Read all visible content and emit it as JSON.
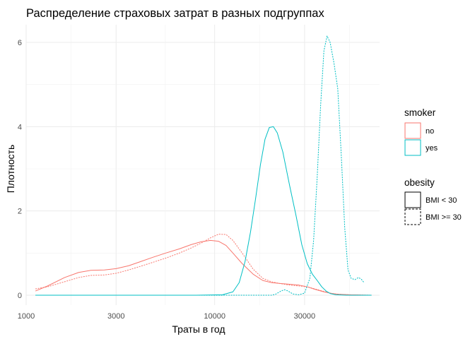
{
  "chart_data": {
    "type": "line",
    "title": "Распределение страховых затрат в разных подгруппах",
    "xlabel": "Траты в год",
    "ylabel": "Плотность",
    "x_scale": "log10",
    "xlim": [
      1000,
      75000
    ],
    "ylim": [
      0,
      6.3
    ],
    "x_ticks": [
      1000,
      3000,
      10000,
      30000
    ],
    "x_tick_labels": [
      "1000",
      "3000",
      "10000",
      "30000"
    ],
    "y_ticks": [
      0,
      2,
      4,
      6
    ],
    "y_tick_labels": [
      "0",
      "2",
      "4",
      "6"
    ],
    "grid": true,
    "legends": [
      {
        "title": "smoker",
        "entries": [
          {
            "label": "no",
            "color": "#F8766D"
          },
          {
            "label": "yes",
            "color": "#00BFC4"
          }
        ]
      },
      {
        "title": "obesity",
        "entries": [
          {
            "label": "BMI < 30",
            "linetype": "solid"
          },
          {
            "label": "BMI >= 30",
            "linetype": "dashed"
          }
        ]
      }
    ],
    "legend_position": "right",
    "series": [
      {
        "smoker": "no",
        "obesity": "BMI < 30",
        "color": "#F8766D",
        "linetype": "solid",
        "points": [
          [
            1120,
            0.1
          ],
          [
            1300,
            0.22
          ],
          [
            1600,
            0.42
          ],
          [
            1900,
            0.54
          ],
          [
            2200,
            0.59
          ],
          [
            2600,
            0.6
          ],
          [
            3000,
            0.63
          ],
          [
            3500,
            0.7
          ],
          [
            4000,
            0.79
          ],
          [
            4700,
            0.9
          ],
          [
            5500,
            1.0
          ],
          [
            6500,
            1.1
          ],
          [
            7500,
            1.2
          ],
          [
            8500,
            1.27
          ],
          [
            9500,
            1.3
          ],
          [
            10500,
            1.28
          ],
          [
            11500,
            1.18
          ],
          [
            12500,
            1.0
          ],
          [
            14000,
            0.75
          ],
          [
            16000,
            0.5
          ],
          [
            18000,
            0.35
          ],
          [
            20000,
            0.3
          ],
          [
            22000,
            0.28
          ],
          [
            25000,
            0.26
          ],
          [
            28000,
            0.24
          ],
          [
            31000,
            0.2
          ],
          [
            34000,
            0.14
          ],
          [
            38000,
            0.08
          ],
          [
            42000,
            0.04
          ],
          [
            46000,
            0.02
          ],
          [
            52000,
            0.01
          ],
          [
            60000,
            0.005
          ],
          [
            68000,
            0
          ]
        ]
      },
      {
        "smoker": "no",
        "obesity": "BMI >= 30",
        "color": "#F8766D",
        "linetype": "dashed",
        "points": [
          [
            1120,
            0.15
          ],
          [
            1300,
            0.2
          ],
          [
            1600,
            0.32
          ],
          [
            1900,
            0.42
          ],
          [
            2200,
            0.47
          ],
          [
            2600,
            0.48
          ],
          [
            3000,
            0.52
          ],
          [
            3500,
            0.6
          ],
          [
            4000,
            0.68
          ],
          [
            4700,
            0.78
          ],
          [
            5500,
            0.88
          ],
          [
            6500,
            1.0
          ],
          [
            7500,
            1.12
          ],
          [
            8500,
            1.24
          ],
          [
            9500,
            1.36
          ],
          [
            10500,
            1.45
          ],
          [
            11500,
            1.44
          ],
          [
            12500,
            1.3
          ],
          [
            14000,
            1.0
          ],
          [
            16000,
            0.62
          ],
          [
            18000,
            0.4
          ],
          [
            20000,
            0.32
          ],
          [
            22000,
            0.28
          ],
          [
            25000,
            0.24
          ],
          [
            28000,
            0.22
          ],
          [
            31000,
            0.2
          ],
          [
            34000,
            0.15
          ],
          [
            38000,
            0.09
          ],
          [
            42000,
            0.04
          ],
          [
            46000,
            0.02
          ],
          [
            52000,
            0.01
          ],
          [
            60000,
            0.005
          ],
          [
            68000,
            0
          ]
        ]
      },
      {
        "smoker": "yes",
        "obesity": "BMI < 30",
        "color": "#00BFC4",
        "linetype": "solid",
        "points": [
          [
            1120,
            0
          ],
          [
            8000,
            0
          ],
          [
            11000,
            0.01
          ],
          [
            12500,
            0.08
          ],
          [
            13500,
            0.3
          ],
          [
            14500,
            0.8
          ],
          [
            15500,
            1.5
          ],
          [
            16500,
            2.3
          ],
          [
            17500,
            3.1
          ],
          [
            18500,
            3.7
          ],
          [
            19500,
            3.98
          ],
          [
            20500,
            4.0
          ],
          [
            21500,
            3.85
          ],
          [
            23000,
            3.4
          ],
          [
            25000,
            2.6
          ],
          [
            27000,
            1.9
          ],
          [
            29000,
            1.2
          ],
          [
            31000,
            0.75
          ],
          [
            33000,
            0.5
          ],
          [
            35000,
            0.35
          ],
          [
            37000,
            0.2
          ],
          [
            39000,
            0.1
          ],
          [
            41000,
            0.04
          ],
          [
            44000,
            0.01
          ],
          [
            50000,
            0
          ],
          [
            68000,
            0
          ]
        ]
      },
      {
        "smoker": "yes",
        "obesity": "BMI >= 30",
        "color": "#00BFC4",
        "linetype": "dashed",
        "points": [
          [
            1120,
            0
          ],
          [
            20000,
            0
          ],
          [
            21000,
            0.02
          ],
          [
            22500,
            0.1
          ],
          [
            23500,
            0.13
          ],
          [
            24500,
            0.1
          ],
          [
            26000,
            0.03
          ],
          [
            28000,
            0.01
          ],
          [
            30000,
            0.05
          ],
          [
            32000,
            0.4
          ],
          [
            33500,
            1.3
          ],
          [
            35000,
            2.8
          ],
          [
            36500,
            4.5
          ],
          [
            38000,
            5.8
          ],
          [
            39500,
            6.15
          ],
          [
            41000,
            6.0
          ],
          [
            43000,
            5.5
          ],
          [
            45000,
            4.9
          ],
          [
            47000,
            3.3
          ],
          [
            49000,
            1.6
          ],
          [
            51000,
            0.6
          ],
          [
            53000,
            0.4
          ],
          [
            55500,
            0.37
          ],
          [
            58000,
            0.42
          ],
          [
            60000,
            0.38
          ],
          [
            62000,
            0.3
          ]
        ]
      }
    ]
  }
}
